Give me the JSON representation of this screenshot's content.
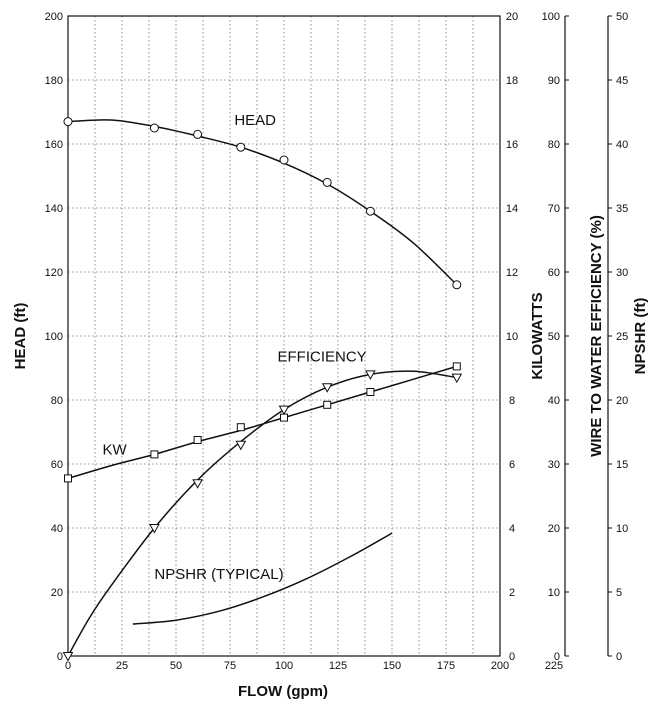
{
  "chart_data": {
    "type": "line",
    "xlabel": "FLOW (gpm)",
    "x_ticks": [
      "0",
      "25",
      "50",
      "75",
      "100",
      "125",
      "150",
      "175",
      "200",
      "225"
    ],
    "xlim": [
      0,
      200
    ],
    "axes": {
      "head": {
        "label": "HEAD (ft)",
        "lim": [
          0,
          200
        ],
        "ticks": [
          "0",
          "20",
          "40",
          "60",
          "80",
          "100",
          "120",
          "140",
          "160",
          "180",
          "200"
        ]
      },
      "kw": {
        "label": "KILOWATTS",
        "lim": [
          0,
          20
        ],
        "ticks": [
          "0",
          "2",
          "4",
          "6",
          "8",
          "10",
          "12",
          "14",
          "16",
          "18",
          "20"
        ]
      },
      "efficiency": {
        "label": "WIRE TO WATER EFFICIENCY (%)",
        "lim": [
          0,
          100
        ],
        "ticks": [
          "0",
          "10",
          "20",
          "30",
          "40",
          "50",
          "60",
          "70",
          "80",
          "90",
          "100"
        ]
      },
      "npshr": {
        "label": "NPSHR (ft)",
        "lim": [
          0,
          50
        ],
        "ticks": [
          "0",
          "5",
          "10",
          "15",
          "20",
          "25",
          "30",
          "35",
          "40",
          "45",
          "50"
        ]
      }
    },
    "grid": true,
    "series": [
      {
        "name": "HEAD",
        "axis": "head",
        "marker": "circle",
        "x": [
          0,
          40,
          60,
          80,
          100,
          120,
          140,
          180
        ],
        "y": [
          167,
          165,
          163,
          159,
          155,
          148,
          139,
          116
        ],
        "curve_x": [
          0,
          20,
          40,
          60,
          80,
          100,
          120,
          140,
          160,
          180
        ],
        "curve_y": [
          167,
          167.5,
          165.5,
          162.5,
          159,
          154,
          147.5,
          139,
          129,
          116
        ]
      },
      {
        "name": "EFFICIENCY",
        "axis": "efficiency",
        "marker": "triangle-down",
        "x": [
          0,
          40,
          60,
          80,
          100,
          120,
          140,
          180
        ],
        "y": [
          0,
          20,
          27,
          33,
          38.5,
          42,
          44,
          43.5
        ],
        "curve_x": [
          0,
          10,
          20,
          40,
          60,
          80,
          100,
          120,
          140,
          160,
          180
        ],
        "curve_y": [
          0,
          6,
          11,
          20,
          27.5,
          33.5,
          38.5,
          42,
          44,
          44.5,
          43.5
        ]
      },
      {
        "name": "KW",
        "axis": "kw",
        "marker": "square",
        "x": [
          0,
          40,
          60,
          80,
          100,
          120,
          140,
          180
        ],
        "y": [
          5.55,
          6.3,
          6.75,
          7.15,
          7.45,
          7.85,
          8.25,
          9.05
        ],
        "curve_x": [
          0,
          20,
          40,
          60,
          80,
          100,
          120,
          140,
          160,
          180
        ],
        "curve_y": [
          5.55,
          5.95,
          6.3,
          6.7,
          7.05,
          7.45,
          7.85,
          8.25,
          8.65,
          9.05
        ]
      },
      {
        "name": "NPSHR (TYPICAL)",
        "axis": "npshr",
        "marker": "none",
        "x": [],
        "y": [],
        "curve_x": [
          30,
          50,
          70,
          90,
          110,
          130,
          150
        ],
        "curve_y": [
          2.5,
          2.8,
          3.5,
          4.6,
          6.0,
          7.7,
          9.6
        ]
      }
    ],
    "annotations": [
      {
        "text": "HEAD",
        "x": 77,
        "y": 166,
        "axis": "head"
      },
      {
        "text": "EFFICIENCY",
        "x": 97,
        "y": 92,
        "axis": "head"
      },
      {
        "text": "KW",
        "x": 16,
        "y": 63,
        "axis": "head"
      },
      {
        "text": "NPSHR (TYPICAL)",
        "x": 40,
        "y": 24,
        "axis": "head"
      }
    ]
  }
}
